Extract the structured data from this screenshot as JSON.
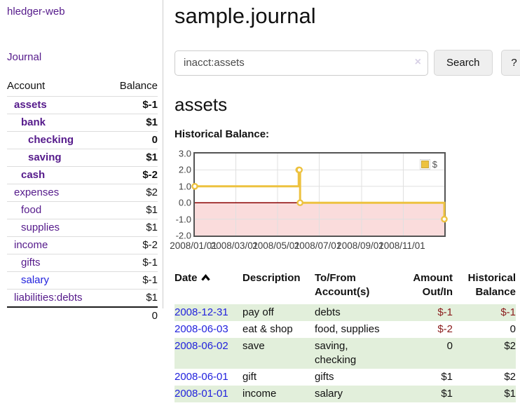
{
  "sidebar": {
    "brand": "hledger-web",
    "journal_link": "Journal",
    "accounts_table": {
      "headers": {
        "account": "Account",
        "balance": "Balance"
      },
      "rows": [
        {
          "name": "assets",
          "balance": "$-1",
          "indent": 1,
          "bold": true,
          "name_color": "purple",
          "balance_tone": "neg-strong"
        },
        {
          "name": "bank",
          "balance": "$1",
          "indent": 2,
          "bold": true,
          "name_color": "purple",
          "balance_tone": "normal"
        },
        {
          "name": "checking",
          "balance": "0",
          "indent": 3,
          "bold": true,
          "name_color": "purple",
          "balance_tone": "normal"
        },
        {
          "name": "saving",
          "balance": "$1",
          "indent": 3,
          "bold": true,
          "name_color": "purple",
          "balance_tone": "normal"
        },
        {
          "name": "cash",
          "balance": "$-2",
          "indent": 2,
          "bold": true,
          "name_color": "purple",
          "balance_tone": "neg-strong"
        },
        {
          "name": "expenses",
          "balance": "$2",
          "indent": 1,
          "bold": false,
          "name_color": "purple",
          "balance_tone": "normal"
        },
        {
          "name": "food",
          "balance": "$1",
          "indent": 2,
          "bold": false,
          "name_color": "purple",
          "balance_tone": "normal"
        },
        {
          "name": "supplies",
          "balance": "$1",
          "indent": 2,
          "bold": false,
          "name_color": "purple",
          "balance_tone": "normal"
        },
        {
          "name": "income",
          "balance": "$-2",
          "indent": 1,
          "bold": false,
          "name_color": "purple",
          "balance_tone": "neg-soft"
        },
        {
          "name": "gifts",
          "balance": "$-1",
          "indent": 2,
          "bold": false,
          "name_color": "purple",
          "balance_tone": "neg-soft"
        },
        {
          "name": "salary",
          "balance": "$-1",
          "indent": 2,
          "bold": false,
          "name_color": "blue",
          "balance_tone": "neg-soft"
        },
        {
          "name": "liabilities:debts",
          "balance": "$1",
          "indent": 1,
          "bold": false,
          "name_color": "purple",
          "balance_tone": "normal"
        }
      ],
      "total": "0"
    }
  },
  "main": {
    "title": "sample.journal",
    "search": {
      "value": "inacct:assets",
      "clear_icon": "×",
      "button_label": "Search",
      "help_label": "?"
    },
    "account_heading": "assets",
    "register_table": {
      "headers": [
        {
          "label": "Date",
          "sorted": "asc"
        },
        {
          "label": "Description"
        },
        {
          "label": "To/From Account(s)"
        },
        {
          "label": "Amount Out/In",
          "align": "right"
        },
        {
          "label": "Historical Balance",
          "align": "right"
        }
      ],
      "rows": [
        {
          "date": "2008-12-31",
          "description": "pay off",
          "accounts": "debts",
          "amount": "$-1",
          "amount_negative": true,
          "balance": "$-1",
          "balance_negative": true,
          "highlighted": true
        },
        {
          "date": "2008-06-03",
          "description": "eat & shop",
          "accounts": "food, supplies",
          "amount": "$-2",
          "amount_negative": true,
          "balance": "0",
          "balance_negative": false,
          "highlighted": false
        },
        {
          "date": "2008-06-02",
          "description": "save",
          "accounts": "saving, checking",
          "amount": "0",
          "amount_negative": false,
          "balance": "$2",
          "balance_negative": false,
          "highlighted": true
        },
        {
          "date": "2008-06-01",
          "description": "gift",
          "accounts": "gifts",
          "amount": "$1",
          "amount_negative": false,
          "balance": "$2",
          "balance_negative": false,
          "highlighted": false
        },
        {
          "date": "2008-01-01",
          "description": "income",
          "accounts": "salary",
          "amount": "$1",
          "amount_negative": false,
          "balance": "$1",
          "balance_negative": false,
          "highlighted": true
        }
      ]
    }
  },
  "chart_data": {
    "type": "line",
    "title": "Historical Balance:",
    "step": true,
    "series": [
      {
        "name": "$",
        "color": "#edc240",
        "points": [
          [
            "2008-01-01",
            1
          ],
          [
            "2008-06-01",
            2
          ],
          [
            "2008-06-02",
            2
          ],
          [
            "2008-06-03",
            0
          ],
          [
            "2008-12-31",
            -1
          ]
        ]
      }
    ],
    "x_ticks": [
      "2008/01/01",
      "2008/03/01",
      "2008/05/01",
      "2008/07/01",
      "2008/09/01",
      "2008/11/01"
    ],
    "y_ticks": [
      3.0,
      2.0,
      1.0,
      0.0,
      -1.0,
      -2.0
    ],
    "ylim": [
      -2,
      3
    ],
    "x_start": "2008-01-01",
    "x_end": "2008-12-31",
    "negative_region_color": "#fadcdc",
    "zero_line_color": "#8b0000",
    "grid_color": "#e0e0e0",
    "border_color": "#545454",
    "legend": {
      "label": "$",
      "position": "top-right"
    }
  }
}
